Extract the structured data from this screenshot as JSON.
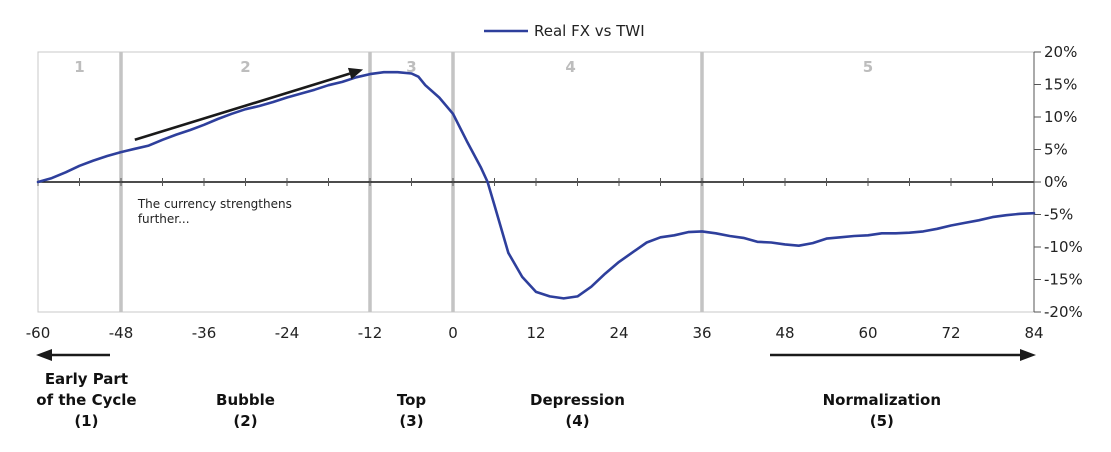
{
  "chart_data": {
    "type": "line",
    "legend": {
      "entries": [
        "Real FX vs TWI"
      ],
      "placement": "top-center"
    },
    "series": [
      {
        "name": "Real FX vs TWI",
        "color": "#2e3f9c",
        "x": [
          -60,
          -58,
          -56,
          -54,
          -52,
          -50,
          -48,
          -46,
          -44,
          -42,
          -40,
          -38,
          -36,
          -34,
          -32,
          -30,
          -28,
          -26,
          -24,
          -22,
          -20,
          -18,
          -16,
          -14,
          -12,
          -10,
          -8,
          -6,
          -5,
          -4,
          -2,
          0,
          2,
          4,
          5,
          6,
          8,
          10,
          12,
          14,
          16,
          18,
          20,
          22,
          24,
          26,
          28,
          30,
          32,
          34,
          36,
          38,
          40,
          42,
          44,
          46,
          48,
          50,
          52,
          54,
          56,
          58,
          60,
          62,
          64,
          66,
          68,
          70,
          72,
          74,
          76,
          78,
          80,
          82,
          84
        ],
        "y": [
          0,
          0.6,
          1.5,
          2.5,
          3.3,
          4.0,
          4.6,
          5.1,
          5.6,
          6.5,
          7.3,
          8.0,
          8.8,
          9.7,
          10.5,
          11.2,
          11.7,
          12.3,
          13.0,
          13.6,
          14.2,
          14.9,
          15.4,
          16.1,
          16.6,
          16.9,
          16.9,
          16.7,
          16.2,
          14.9,
          13.0,
          10.5,
          6.3,
          2.3,
          0,
          -3.6,
          -10.9,
          -14.6,
          -16.9,
          -17.6,
          -17.9,
          -17.6,
          -16.1,
          -14.1,
          -12.3,
          -10.8,
          -9.3,
          -8.5,
          -8.2,
          -7.7,
          -7.6,
          -7.9,
          -8.3,
          -8.6,
          -9.2,
          -9.3,
          -9.6,
          -9.8,
          -9.4,
          -8.7,
          -8.5,
          -8.3,
          -8.2,
          -7.9,
          -7.9,
          -7.8,
          -7.6,
          -7.2,
          -6.7,
          -6.3,
          -5.9,
          -5.4,
          -5.1,
          -4.9,
          -4.8
        ]
      }
    ],
    "xlim": [
      -60,
      84
    ],
    "ylim": [
      -20,
      20
    ],
    "x_ticks": [
      -60,
      -48,
      -36,
      -24,
      -12,
      0,
      12,
      24,
      36,
      48,
      60,
      72,
      84
    ],
    "x_tick_labels": [
      "-60",
      "-48",
      "-36",
      "-24",
      "-12",
      "0",
      "12",
      "24",
      "36",
      "48",
      "60",
      "72",
      "84"
    ],
    "y_ticks": [
      20,
      15,
      10,
      5,
      0,
      -5,
      -10,
      -15,
      -20
    ],
    "y_tick_labels": [
      "20%",
      "15%",
      "10%",
      "5%",
      "0%",
      "-5%",
      "-10%",
      "-15%",
      "-20%"
    ],
    "y_axis_side": "right",
    "phase_boundaries": [
      -48,
      -12,
      0,
      36
    ],
    "phase_numbers": [
      {
        "label": "1",
        "x": -54
      },
      {
        "label": "2",
        "x": -30
      },
      {
        "label": "3",
        "x": -6
      },
      {
        "label": "4",
        "x": 17
      },
      {
        "label": "5",
        "x": 60
      }
    ],
    "annotations": [
      {
        "lines": [
          "The currency strengthens",
          "further..."
        ],
        "x": -46,
        "y": -4
      }
    ],
    "trend_arrow": {
      "from": [
        -46,
        6.5
      ],
      "to": [
        -13,
        17.3
      ]
    },
    "bottom_phase_labels": [
      {
        "lines": [
          "Early Part",
          "of the Cycle",
          "(1)"
        ],
        "x": -53
      },
      {
        "lines": [
          "Bubble",
          "(2)"
        ],
        "x": -30
      },
      {
        "lines": [
          "Top",
          "(3)"
        ],
        "x": -6
      },
      {
        "lines": [
          "Depression",
          "(4)"
        ],
        "x": 18
      },
      {
        "lines": [
          "Normalization",
          "(5)"
        ],
        "x": 62
      }
    ],
    "grid": false
  }
}
